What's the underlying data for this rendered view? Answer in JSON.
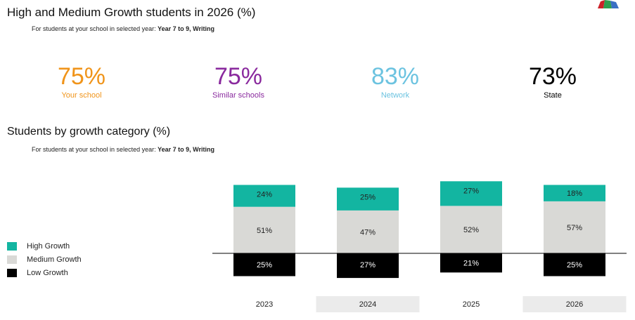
{
  "header": {
    "title": "High and Medium Growth students in 2026 (%)",
    "subtitle_prefix": "For students at your school in selected year: ",
    "subtitle_bold": "Year 7 to 9, Writing"
  },
  "kpis": [
    {
      "value": "75%",
      "label": "Your school",
      "color": "#f0941a"
    },
    {
      "value": "75%",
      "label": "Similar schools",
      "color": "#8a2a9e"
    },
    {
      "value": "83%",
      "label": "Network",
      "color": "#6cc3e0"
    },
    {
      "value": "73%",
      "label": "State",
      "color": "#000000"
    }
  ],
  "section2": {
    "title": "Students by growth category (%)",
    "subtitle_prefix": "For students at your school in selected year: ",
    "subtitle_bold": "Year 7 to 9, Writing"
  },
  "legend": [
    {
      "label": "High Growth",
      "color": "#13b5a1"
    },
    {
      "label": "Medium Growth",
      "color": "#d9d9d6"
    },
    {
      "label": "Low Growth",
      "color": "#000000"
    }
  ],
  "chart_data": {
    "type": "bar",
    "stacked": "diverging",
    "baseline": "Low Growth below axis line",
    "categories": [
      "2023",
      "2024",
      "2025",
      "2026"
    ],
    "series": [
      {
        "name": "High Growth",
        "color": "#13b5a1",
        "values": [
          24,
          25,
          27,
          18
        ],
        "labels": [
          "24%",
          "25%",
          "27%",
          "18%"
        ]
      },
      {
        "name": "Medium Growth",
        "color": "#d9d9d6",
        "values": [
          51,
          47,
          52,
          57
        ],
        "labels": [
          "51%",
          "47%",
          "52%",
          "57%"
        ]
      },
      {
        "name": "Low Growth",
        "color": "#000000",
        "values": [
          25,
          27,
          21,
          25
        ],
        "labels": [
          "25%",
          "27%",
          "21%",
          "25%"
        ]
      }
    ],
    "category_band_fill": "#ebebeb"
  }
}
